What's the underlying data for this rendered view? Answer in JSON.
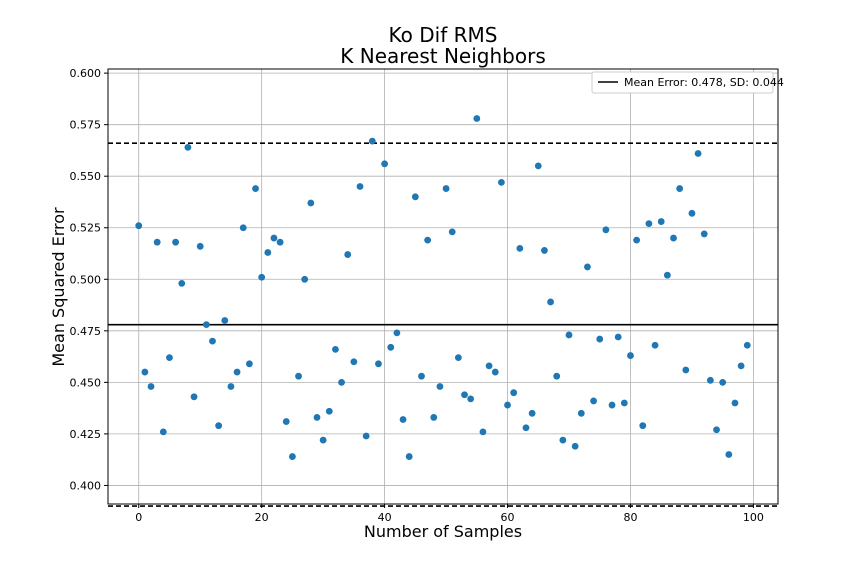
{
  "chart_data": {
    "type": "scatter",
    "title": "Ko Dif RMS",
    "subtitle": "K Nearest Neighbors",
    "xlabel": "Number of Samples",
    "ylabel": "Mean Squared Error",
    "xlim": [
      -5,
      104
    ],
    "ylim": [
      0.391,
      0.602
    ],
    "xticks": [
      0,
      20,
      40,
      60,
      80,
      100
    ],
    "yticks": [
      0.4,
      0.425,
      0.45,
      0.475,
      0.5,
      0.525,
      0.55,
      0.575,
      0.6
    ],
    "xtick_labels": [
      "0",
      "20",
      "40",
      "60",
      "80",
      "100"
    ],
    "ytick_labels": [
      "0.400",
      "0.425",
      "0.450",
      "0.475",
      "0.500",
      "0.525",
      "0.550",
      "0.575",
      "0.600"
    ],
    "grid": true,
    "legend_position": "top-right",
    "mean_line": {
      "value": 0.478,
      "label": "Mean Error: 0.478, SD: 0.044",
      "color": "#000000"
    },
    "sd_lines": {
      "upper": 0.566,
      "lower": 0.39,
      "color": "#000000"
    },
    "series": [
      {
        "color": "#1f77b4",
        "x": [
          0,
          1,
          2,
          3,
          4,
          5,
          6,
          7,
          8,
          9,
          10,
          11,
          12,
          13,
          14,
          15,
          16,
          17,
          18,
          19,
          20,
          21,
          22,
          23,
          24,
          25,
          26,
          27,
          28,
          29,
          30,
          31,
          32,
          33,
          34,
          35,
          36,
          37,
          38,
          39,
          40,
          41,
          42,
          43,
          44,
          45,
          46,
          47,
          48,
          49,
          50,
          51,
          52,
          53,
          54,
          55,
          56,
          57,
          58,
          59,
          60,
          61,
          62,
          63,
          64,
          65,
          66,
          67,
          68,
          69,
          70,
          71,
          72,
          73,
          74,
          75,
          76,
          77,
          78,
          79,
          80,
          81,
          82,
          83,
          84,
          85,
          86,
          87,
          88,
          89,
          90,
          91,
          92,
          93,
          94,
          95,
          96,
          97,
          98,
          99
        ],
        "y": [
          0.526,
          0.455,
          0.448,
          0.518,
          0.426,
          0.462,
          0.518,
          0.498,
          0.564,
          0.443,
          0.516,
          0.478,
          0.47,
          0.429,
          0.48,
          0.448,
          0.455,
          0.525,
          0.459,
          0.544,
          0.501,
          0.513,
          0.52,
          0.518,
          0.431,
          0.414,
          0.453,
          0.5,
          0.537,
          0.433,
          0.422,
          0.436,
          0.466,
          0.45,
          0.512,
          0.46,
          0.545,
          0.424,
          0.567,
          0.459,
          0.556,
          0.467,
          0.474,
          0.432,
          0.414,
          0.54,
          0.453,
          0.519,
          0.433,
          0.448,
          0.544,
          0.523,
          0.462,
          0.444,
          0.442,
          0.578,
          0.426,
          0.458,
          0.455,
          0.547,
          0.439,
          0.445,
          0.515,
          0.428,
          0.435,
          0.555,
          0.514,
          0.489,
          0.453,
          0.422,
          0.473,
          0.419,
          0.435,
          0.506,
          0.441,
          0.471,
          0.524,
          0.439,
          0.472,
          0.44,
          0.463,
          0.519,
          0.429,
          0.527,
          0.468,
          0.528,
          0.502,
          0.52,
          0.544,
          0.456,
          0.532,
          0.561,
          0.522,
          0.451,
          0.427,
          0.45,
          0.415,
          0.44,
          0.458,
          0.468
        ]
      }
    ]
  }
}
